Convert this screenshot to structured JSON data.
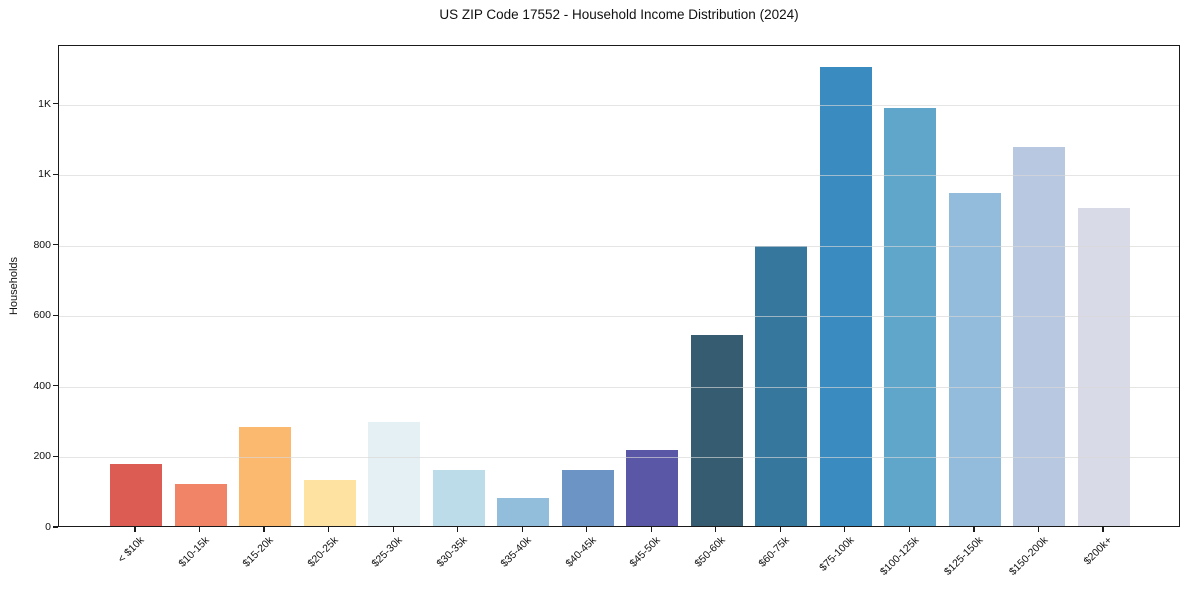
{
  "figure": {
    "title": "US ZIP Code 17552 - Household Income Distribution (2024)"
  },
  "chart_data": {
    "type": "bar",
    "title": "US ZIP Code 17552 - Household Income Distribution (2024)",
    "xlabel": "",
    "ylabel": "Households",
    "categories": [
      "< $10k",
      "$10-15k",
      "$15-20k",
      "$20-25k",
      "$25-30k",
      "$30-35k",
      "$35-40k",
      "$40-45k",
      "$45-50k",
      "$50-60k",
      "$60-75k",
      "$75-100k",
      "$100-125k",
      "$125-150k",
      "$150-200k",
      "$200k+"
    ],
    "values": [
      176,
      119,
      281,
      130,
      295,
      159,
      80,
      160,
      215,
      542,
      793,
      1301,
      1185,
      944,
      1075,
      901
    ],
    "bar_colors": [
      "#dc5b53",
      "#f18366",
      "#fbb96f",
      "#fde2a2",
      "#e4f0f3",
      "#bddcea",
      "#92bddb",
      "#6c94c5",
      "#5a57a7",
      "#355c70",
      "#36789d",
      "#398bc0",
      "#60a5ca",
      "#93bbdb",
      "#b9c8e1",
      "#d9dae8"
    ],
    "y_ticks": {
      "values": [
        0,
        200,
        400,
        600,
        800,
        1000,
        1200
      ],
      "labels": [
        "0",
        "200",
        "400",
        "600",
        "800",
        "1K",
        "1K"
      ]
    },
    "ylim": [
      0,
      1366
    ],
    "grid": "horizontal-only",
    "legend": "none",
    "x_tick_rotation_deg": 45,
    "plot_border": "full-box"
  }
}
